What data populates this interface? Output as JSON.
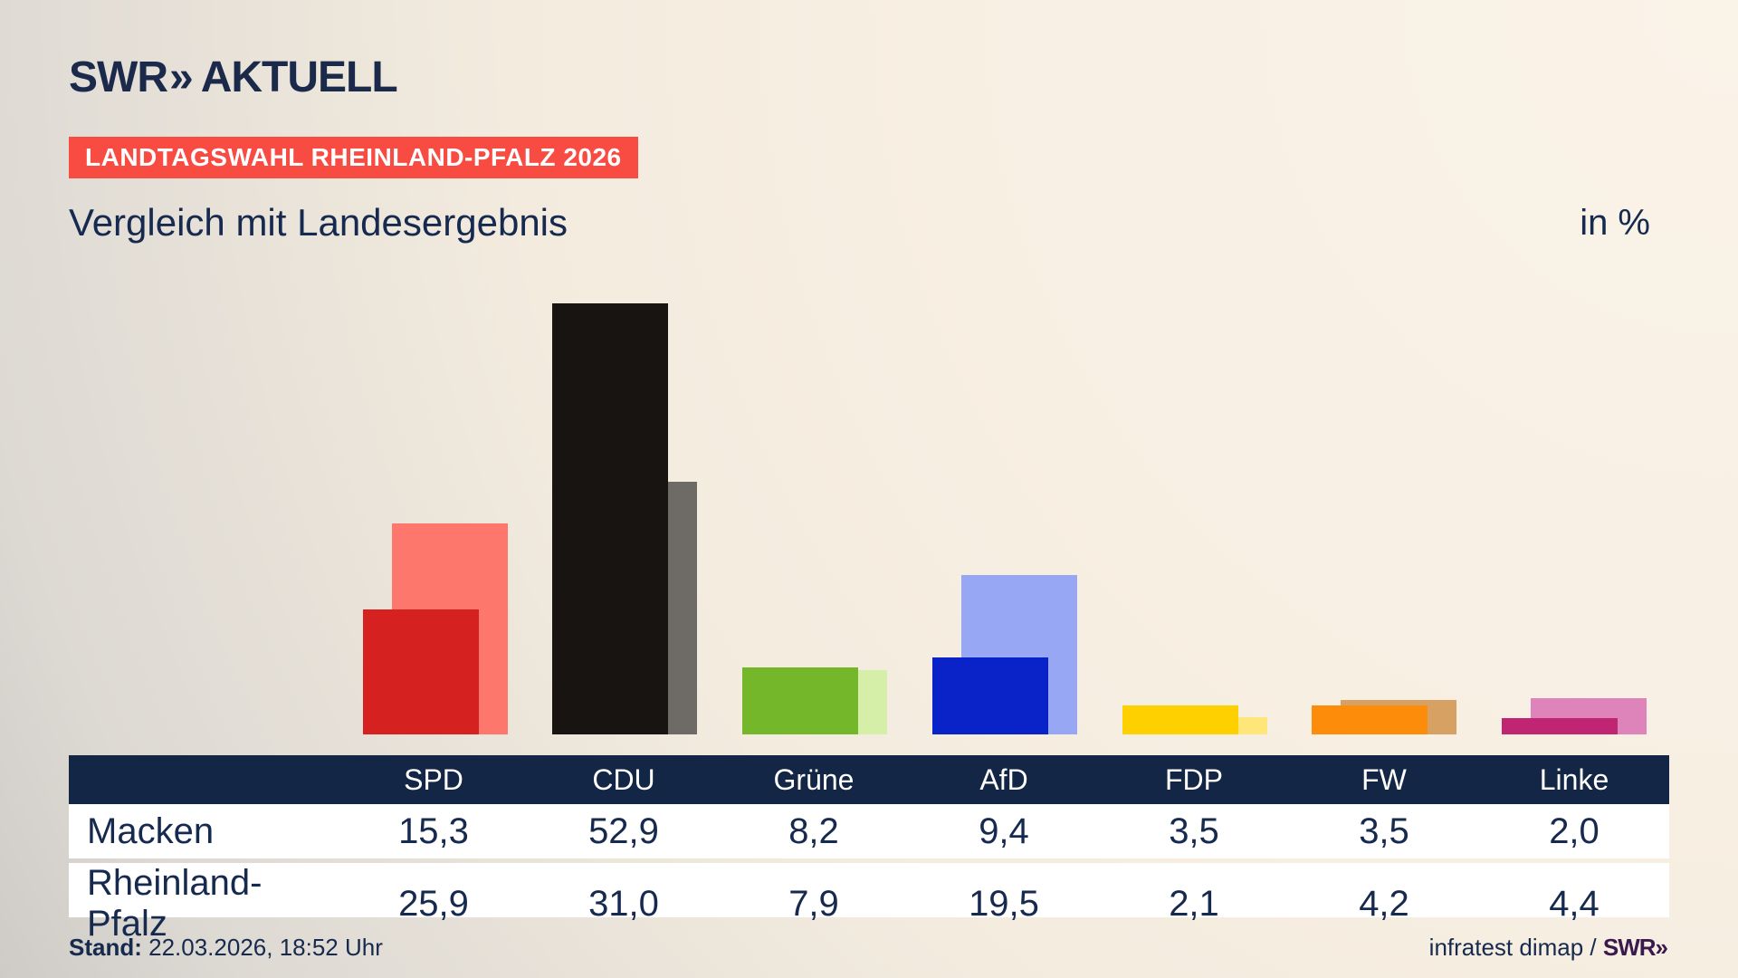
{
  "header": {
    "logo": {
      "swr": "SWR",
      "chevron": "»",
      "aktuell": "AKTUELL"
    },
    "badge": "LANDTAGSWAHL RHEINLAND-PFALZ 2026",
    "title": "Vergleich mit Landesergebnis",
    "unit_label": "in %"
  },
  "colors": {
    "badge_red": "#f84b42",
    "navy": "#16294e",
    "table_header_bg": "#132646",
    "footer_logo_purple": "#3a1a4d",
    "background_light": "#faf3e8",
    "background_dark": "#c5c2bd"
  },
  "chart_data": {
    "type": "bar",
    "title": "Vergleich mit Landesergebnis",
    "unit": "in %",
    "categories": [
      "SPD",
      "CDU",
      "Grüne",
      "AfD",
      "FDP",
      "FW",
      "Linke"
    ],
    "series": [
      {
        "name": "Macken",
        "values": [
          15.3,
          52.9,
          8.2,
          9.4,
          3.5,
          3.5,
          2.0
        ],
        "colors": [
          "#d52221",
          "#171412",
          "#74b72b",
          "#0a23c8",
          "#ffd000",
          "#fd8c0b",
          "#c02573"
        ]
      },
      {
        "name": "Rheinland-Pfalz",
        "values": [
          25.9,
          31.0,
          7.9,
          19.5,
          2.1,
          4.2,
          4.4
        ],
        "colors": [
          "#fe776c",
          "#6e6b67",
          "#d5efa8",
          "#98a7f4",
          "#ffe678",
          "#d8a164",
          "#df84bb"
        ]
      }
    ],
    "legend_position": "none",
    "grid": false,
    "ylim": [
      0,
      55
    ]
  },
  "table": {
    "columns": [
      "SPD",
      "CDU",
      "Grüne",
      "AfD",
      "FDP",
      "FW",
      "Linke"
    ],
    "rows": [
      {
        "label": "Macken",
        "values": [
          "15,3",
          "52,9",
          "8,2",
          "9,4",
          "3,5",
          "3,5",
          "2,0"
        ]
      },
      {
        "label": "Rheinland-Pfalz",
        "values": [
          "25,9",
          "31,0",
          "7,9",
          "19,5",
          "2,1",
          "4,2",
          "4,4"
        ]
      }
    ]
  },
  "footer": {
    "stand_label": "Stand:",
    "stand_value": " 22.03.2026, 18:52 Uhr",
    "source_prefix": "infratest dimap / ",
    "source_logo": "SWR»"
  }
}
